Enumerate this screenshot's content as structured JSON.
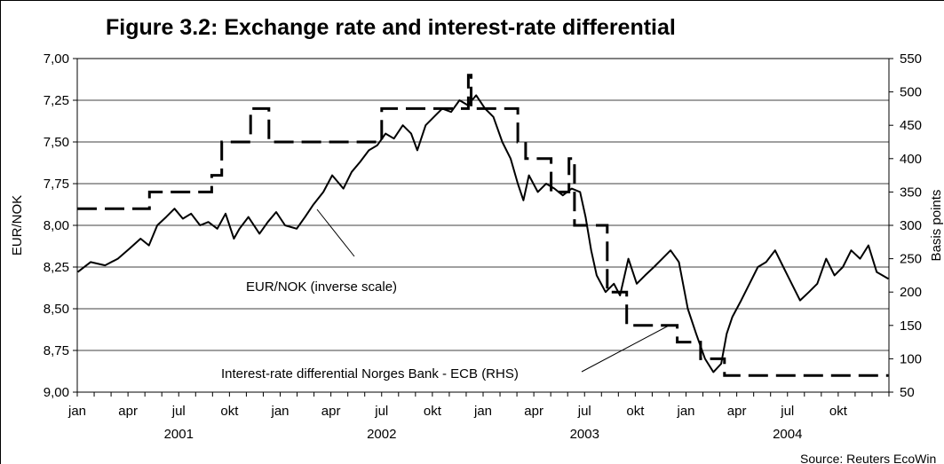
{
  "chart_data": {
    "type": "line",
    "title": "Figure 3.2: Exchange rate and interest-rate differential",
    "ylabel_left": "EUR/NOK",
    "ylabel_right": "Basis points",
    "left_axis": {
      "inverted": true,
      "range": [
        7.0,
        9.0
      ],
      "ticks": [
        "7,00",
        "7,25",
        "7,50",
        "7,75",
        "8,00",
        "8,25",
        "8,50",
        "8,75",
        "9,00"
      ]
    },
    "right_axis": {
      "range": [
        50,
        550
      ],
      "ticks": [
        "550",
        "500",
        "450",
        "400",
        "350",
        "300",
        "250",
        "200",
        "150",
        "100",
        "50"
      ]
    },
    "x_axis": {
      "range": [
        "2001-01-01",
        "2005-01-01"
      ],
      "month_ticks": [
        "jan",
        "apr",
        "jul",
        "okt",
        "jan",
        "apr",
        "jul",
        "okt",
        "jan",
        "apr",
        "jul",
        "okt",
        "jan",
        "apr",
        "jul",
        "okt"
      ],
      "year_labels": [
        "2001",
        "2002",
        "2003",
        "2004"
      ]
    },
    "grid": "horizontal",
    "series": [
      {
        "name": "EUR/NOK (inverse scale)",
        "axis": "left",
        "style": "solid",
        "points": [
          [
            "2001-01-02",
            8.28
          ],
          [
            "2001-01-25",
            8.22
          ],
          [
            "2001-02-20",
            8.24
          ],
          [
            "2001-03-15",
            8.2
          ],
          [
            "2001-04-05",
            8.14
          ],
          [
            "2001-04-25",
            8.08
          ],
          [
            "2001-05-10",
            8.12
          ],
          [
            "2001-05-25",
            8.0
          ],
          [
            "2001-06-10",
            7.95
          ],
          [
            "2001-06-25",
            7.9
          ],
          [
            "2001-07-10",
            7.96
          ],
          [
            "2001-07-25",
            7.93
          ],
          [
            "2001-08-10",
            8.0
          ],
          [
            "2001-08-25",
            7.98
          ],
          [
            "2001-09-10",
            8.02
          ],
          [
            "2001-09-25",
            7.93
          ],
          [
            "2001-10-10",
            8.08
          ],
          [
            "2001-10-20",
            8.02
          ],
          [
            "2001-11-05",
            7.95
          ],
          [
            "2001-11-25",
            8.05
          ],
          [
            "2001-12-10",
            7.98
          ],
          [
            "2001-12-25",
            7.92
          ],
          [
            "2002-01-10",
            8.0
          ],
          [
            "2002-01-31",
            8.02
          ],
          [
            "2002-02-15",
            7.95
          ],
          [
            "2002-03-01",
            7.88
          ],
          [
            "2002-03-20",
            7.8
          ],
          [
            "2002-04-05",
            7.7
          ],
          [
            "2002-04-25",
            7.78
          ],
          [
            "2002-05-10",
            7.68
          ],
          [
            "2002-05-25",
            7.62
          ],
          [
            "2002-06-10",
            7.55
          ],
          [
            "2002-06-25",
            7.52
          ],
          [
            "2002-07-10",
            7.45
          ],
          [
            "2002-07-25",
            7.48
          ],
          [
            "2002-08-10",
            7.4
          ],
          [
            "2002-08-25",
            7.45
          ],
          [
            "2002-09-05",
            7.55
          ],
          [
            "2002-09-20",
            7.4
          ],
          [
            "2002-10-05",
            7.35
          ],
          [
            "2002-10-20",
            7.3
          ],
          [
            "2002-11-05",
            7.32
          ],
          [
            "2002-11-20",
            7.25
          ],
          [
            "2002-12-05",
            7.28
          ],
          [
            "2002-12-20",
            7.22
          ],
          [
            "2003-01-05",
            7.3
          ],
          [
            "2003-01-20",
            7.35
          ],
          [
            "2003-02-05",
            7.5
          ],
          [
            "2003-02-20",
            7.6
          ],
          [
            "2003-03-05",
            7.75
          ],
          [
            "2003-03-15",
            7.85
          ],
          [
            "2003-03-25",
            7.7
          ],
          [
            "2003-04-10",
            7.8
          ],
          [
            "2003-04-25",
            7.75
          ],
          [
            "2003-05-10",
            7.78
          ],
          [
            "2003-05-25",
            7.82
          ],
          [
            "2003-06-10",
            7.78
          ],
          [
            "2003-06-25",
            7.8
          ],
          [
            "2003-07-05",
            7.95
          ],
          [
            "2003-07-15",
            8.15
          ],
          [
            "2003-07-25",
            8.3
          ],
          [
            "2003-08-10",
            8.4
          ],
          [
            "2003-08-25",
            8.35
          ],
          [
            "2003-09-05",
            8.42
          ],
          [
            "2003-09-20",
            8.2
          ],
          [
            "2003-10-05",
            8.35
          ],
          [
            "2003-10-20",
            8.3
          ],
          [
            "2003-11-05",
            8.25
          ],
          [
            "2003-11-20",
            8.2
          ],
          [
            "2003-12-05",
            8.15
          ],
          [
            "2003-12-20",
            8.22
          ],
          [
            "2004-01-05",
            8.5
          ],
          [
            "2004-01-20",
            8.65
          ],
          [
            "2004-02-05",
            8.8
          ],
          [
            "2004-02-20",
            8.88
          ],
          [
            "2004-03-05",
            8.83
          ],
          [
            "2004-03-15",
            8.65
          ],
          [
            "2004-03-25",
            8.55
          ],
          [
            "2004-04-10",
            8.45
          ],
          [
            "2004-04-25",
            8.35
          ],
          [
            "2004-05-10",
            8.25
          ],
          [
            "2004-05-25",
            8.22
          ],
          [
            "2004-06-10",
            8.15
          ],
          [
            "2004-06-25",
            8.25
          ],
          [
            "2004-07-10",
            8.35
          ],
          [
            "2004-07-25",
            8.45
          ],
          [
            "2004-08-10",
            8.4
          ],
          [
            "2004-08-25",
            8.35
          ],
          [
            "2004-09-10",
            8.2
          ],
          [
            "2004-09-25",
            8.3
          ],
          [
            "2004-10-10",
            8.25
          ],
          [
            "2004-10-25",
            8.15
          ],
          [
            "2004-11-10",
            8.2
          ],
          [
            "2004-11-25",
            8.12
          ],
          [
            "2004-12-10",
            8.28
          ],
          [
            "2004-12-31",
            8.32
          ]
        ]
      },
      {
        "name": "Interest-rate differential Norges Bank - ECB (RHS)",
        "axis": "right",
        "style": "dashed",
        "steps": [
          [
            "2001-01-01",
            325
          ],
          [
            "2001-05-11",
            350
          ],
          [
            "2001-08-31",
            375
          ],
          [
            "2001-09-18",
            425
          ],
          [
            "2001-11-09",
            475
          ],
          [
            "2001-12-12",
            425
          ],
          [
            "2002-07-03",
            475
          ],
          [
            "2002-12-06",
            525
          ],
          [
            "2002-12-11",
            475
          ],
          [
            "2003-03-05",
            425
          ],
          [
            "2003-03-19",
            400
          ],
          [
            "2003-05-04",
            350
          ],
          [
            "2003-06-05",
            400
          ],
          [
            "2003-06-15",
            300
          ],
          [
            "2003-08-13",
            200
          ],
          [
            "2003-09-17",
            150
          ],
          [
            "2003-12-17",
            125
          ],
          [
            "2004-01-28",
            100
          ],
          [
            "2004-03-11",
            75
          ],
          [
            "2004-12-31",
            75
          ]
        ]
      }
    ],
    "annotations": [
      "EUR/NOK (inverse scale)",
      "Interest-rate differential Norges Bank - ECB (RHS)"
    ],
    "source": "Source: Reuters EcoWin"
  }
}
